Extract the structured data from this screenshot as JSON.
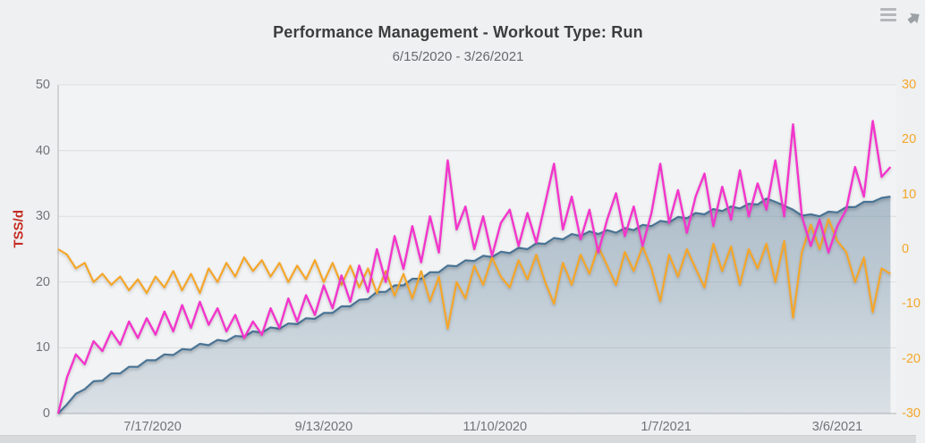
{
  "header": {
    "title": "Performance Management - Workout Type: Run",
    "subtitle": "6/15/2020 - 3/26/2021"
  },
  "icons": {
    "menu": "hamburger-icon",
    "popout": "popout-icon-clipped"
  },
  "colors": {
    "page_bg": "#eef0f1",
    "plot_bg": "#f2f3f4",
    "gridline": "#dcdedf",
    "axis_line": "#c7c9ca",
    "blue_line": "#4a7495",
    "blue_area_top": "rgba(74,112,140,0.42)",
    "blue_area_bottom": "rgba(74,112,140,0.14)",
    "magenta_line": "#f335cb",
    "orange_line": "#f5a62a",
    "left_axis_title": "#c52b20",
    "tick_text": "#707478"
  },
  "chart_data": {
    "type": "line",
    "title": "Performance Management - Workout Type: Run",
    "subtitle": "6/15/2020 - 3/26/2021",
    "start_date": "6/15/2020",
    "end_date": "3/26/2021",
    "total_days": 284,
    "sample_step_days": 3,
    "grid": "horizontal-only",
    "legend": "none",
    "left_axis": {
      "label": "TSS/d",
      "min": 0,
      "max": 50,
      "ticks": [
        0,
        10,
        20,
        30,
        40,
        50
      ]
    },
    "right_axis": {
      "label": "",
      "min": -30,
      "max": 30,
      "ticks": [
        30,
        20,
        10,
        0,
        -10,
        -20,
        -30
      ]
    },
    "x_ticks": [
      {
        "day": 32,
        "label": "7/17/2020"
      },
      {
        "day": 90,
        "label": "9/13/2020"
      },
      {
        "day": 148,
        "label": "11/10/2020"
      },
      {
        "day": 206,
        "label": "1/7/2021"
      },
      {
        "day": 264,
        "label": "3/6/2021"
      }
    ],
    "series": [
      {
        "name": "blue-area-fitness",
        "type": "area",
        "axis": "left",
        "values": [
          0,
          1.4,
          3.0,
          3.7,
          4.9,
          5.0,
          6.1,
          6.1,
          7.1,
          7.1,
          8.1,
          8.1,
          9.0,
          8.9,
          9.8,
          9.7,
          10.6,
          10.4,
          11.2,
          11.0,
          11.8,
          11.7,
          12.5,
          12.3,
          13.1,
          12.9,
          13.7,
          13.6,
          14.5,
          14.4,
          15.3,
          15.3,
          16.3,
          16.3,
          17.3,
          17.4,
          18.5,
          18.5,
          19.5,
          19.5,
          20.5,
          20.5,
          21.5,
          21.5,
          22.5,
          22.4,
          23.3,
          23.2,
          24.0,
          23.8,
          24.6,
          24.4,
          25.2,
          25.0,
          25.9,
          25.8,
          26.7,
          26.5,
          27.3,
          27.0,
          27.7,
          27.3,
          27.9,
          27.5,
          28.2,
          27.9,
          28.7,
          28.5,
          29.3,
          29.1,
          29.9,
          29.7,
          30.5,
          30.3,
          31.1,
          30.8,
          31.5,
          31.2,
          31.9,
          31.8,
          32.7,
          32.2,
          31.6,
          31.0,
          30.1,
          30.3,
          30.0,
          30.7,
          30.6,
          31.4,
          31.4,
          32.2,
          32.2,
          32.8,
          33.0
        ]
      },
      {
        "name": "orange-line-form",
        "type": "line",
        "axis": "right",
        "values": [
          0,
          -1.0,
          -3.5,
          -2.5,
          -6.0,
          -4.5,
          -6.5,
          -5.0,
          -7.5,
          -5.5,
          -8.0,
          -5.0,
          -7.0,
          -4.0,
          -7.5,
          -4.5,
          -8.0,
          -3.5,
          -6.0,
          -2.5,
          -5.0,
          -1.5,
          -4.0,
          -2.0,
          -5.0,
          -2.5,
          -6.0,
          -3.0,
          -5.5,
          -2.0,
          -6.0,
          -2.5,
          -6.5,
          -3.0,
          -7.0,
          -3.5,
          -8.0,
          -4.0,
          -8.5,
          -4.5,
          -9.0,
          -4.0,
          -9.5,
          -5.0,
          -14.5,
          -6.0,
          -9.0,
          -3.0,
          -6.5,
          -1.5,
          -5.0,
          -7.0,
          -2.0,
          -5.5,
          -1.0,
          -6.0,
          -10.0,
          -2.5,
          -6.5,
          -1.0,
          -4.5,
          0.5,
          -3.0,
          -6.5,
          -0.5,
          -4.0,
          0.5,
          -3.5,
          -9.5,
          -1.0,
          -5.0,
          0.0,
          -3.5,
          -7.0,
          1.0,
          -4.0,
          0.5,
          -6.5,
          0.0,
          -3.5,
          1.0,
          -6.0,
          1.5,
          -12.5,
          -0.5,
          4.5,
          0.0,
          5.5,
          1.5,
          -0.5,
          -6.0,
          -1.5,
          -11.5,
          -3.5,
          -4.5
        ]
      },
      {
        "name": "magenta-line-fatigue",
        "type": "line",
        "axis": "left",
        "values": [
          0,
          5.5,
          9.0,
          7.5,
          11.0,
          9.5,
          12.5,
          10.5,
          14.0,
          11.5,
          14.5,
          12.0,
          15.5,
          12.5,
          16.5,
          13.0,
          17.0,
          13.5,
          16.0,
          12.5,
          15.0,
          11.5,
          14.0,
          12.0,
          16.0,
          13.0,
          17.5,
          14.0,
          18.0,
          15.0,
          19.5,
          16.0,
          21.0,
          17.0,
          22.5,
          18.5,
          25.0,
          20.0,
          27.0,
          22.0,
          28.5,
          23.0,
          30.0,
          24.5,
          38.5,
          28.0,
          31.5,
          25.0,
          30.0,
          24.0,
          29.0,
          31.0,
          25.5,
          30.5,
          26.0,
          32.0,
          38.0,
          28.0,
          33.0,
          26.5,
          31.0,
          24.5,
          29.5,
          33.5,
          27.0,
          31.5,
          25.5,
          30.5,
          38.0,
          29.0,
          34.0,
          27.5,
          33.0,
          36.5,
          28.5,
          34.5,
          29.5,
          37.0,
          30.0,
          35.0,
          31.0,
          38.5,
          30.0,
          44.0,
          30.0,
          25.5,
          29.5,
          24.5,
          28.5,
          31.0,
          37.5,
          33.0,
          44.5,
          36.0,
          37.5
        ]
      }
    ]
  }
}
